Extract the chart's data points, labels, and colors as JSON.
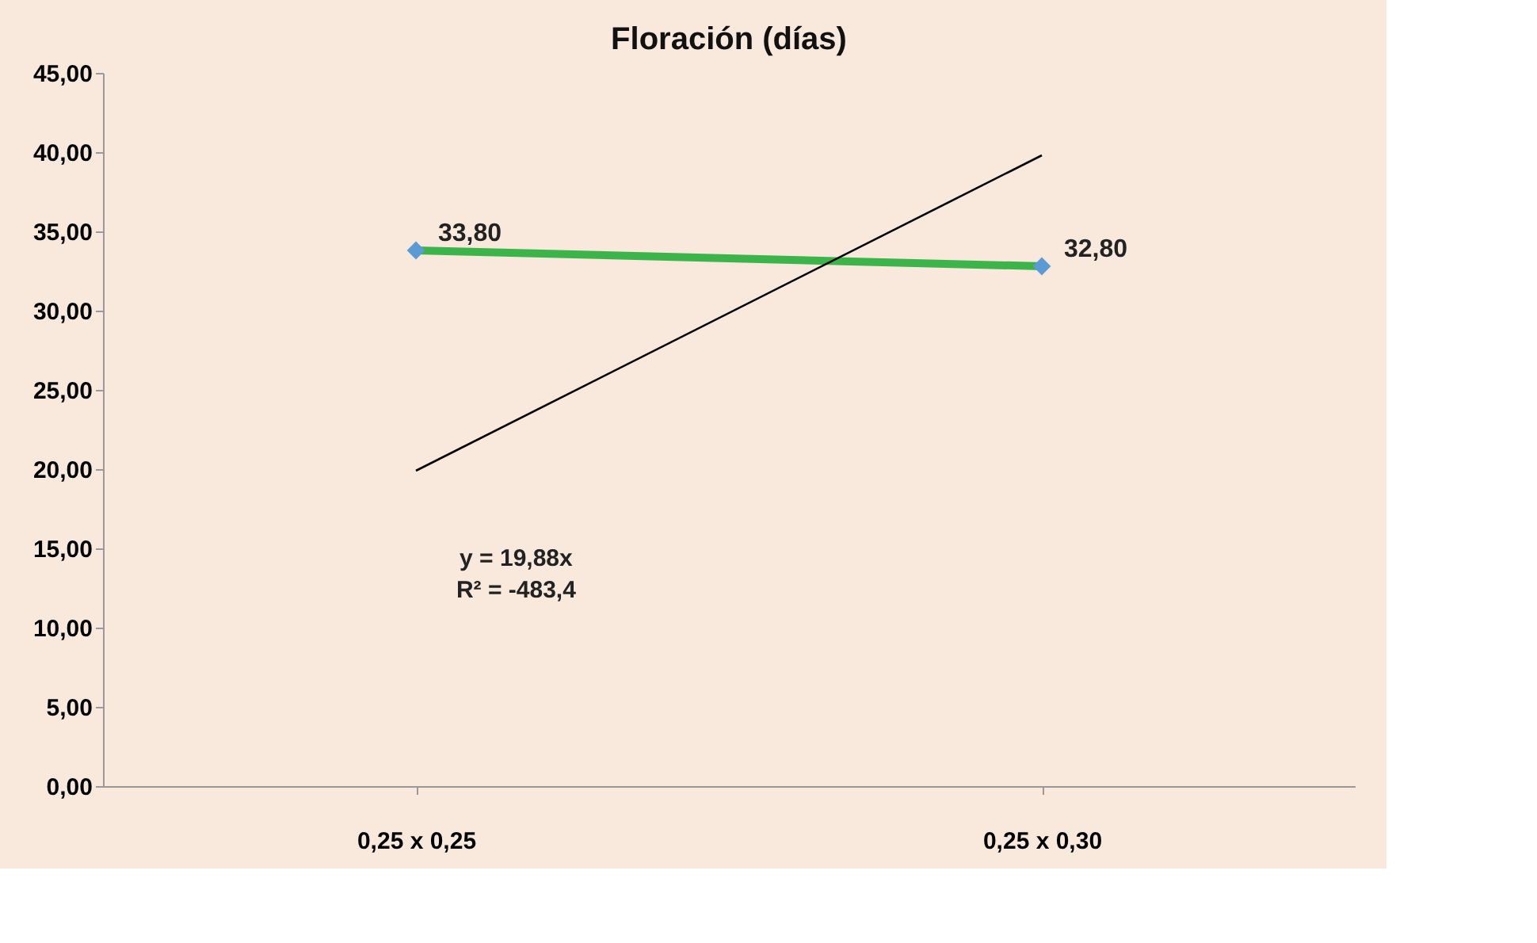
{
  "chart_data": {
    "type": "line",
    "title": "Floración (días)",
    "categories": [
      "0,25 x 0,25",
      "0,25 x 0,30"
    ],
    "series": [
      {
        "color": "#3cb44a",
        "values": [
          33.8,
          32.8
        ],
        "marker": "diamond",
        "value_labels": [
          "33,80",
          "32,80"
        ]
      },
      {
        "color": "#000000",
        "values": [
          19.9,
          39.8
        ],
        "marker": "none"
      }
    ],
    "ylim": [
      0,
      45
    ],
    "yticks": [
      {
        "value": 0,
        "label": "0,00"
      },
      {
        "value": 5,
        "label": "5,00"
      },
      {
        "value": 10,
        "label": "10,00"
      },
      {
        "value": 15,
        "label": "15,00"
      },
      {
        "value": 20,
        "label": "20,00"
      },
      {
        "value": 25,
        "label": "25,00"
      },
      {
        "value": 30,
        "label": "30,00"
      },
      {
        "value": 35,
        "label": "35,00"
      },
      {
        "value": 40,
        "label": "40,00"
      },
      {
        "value": 45,
        "label": "45,00"
      }
    ],
    "annotations": [
      "y = 19,88x",
      "R² = -483,4"
    ],
    "grid": false
  }
}
